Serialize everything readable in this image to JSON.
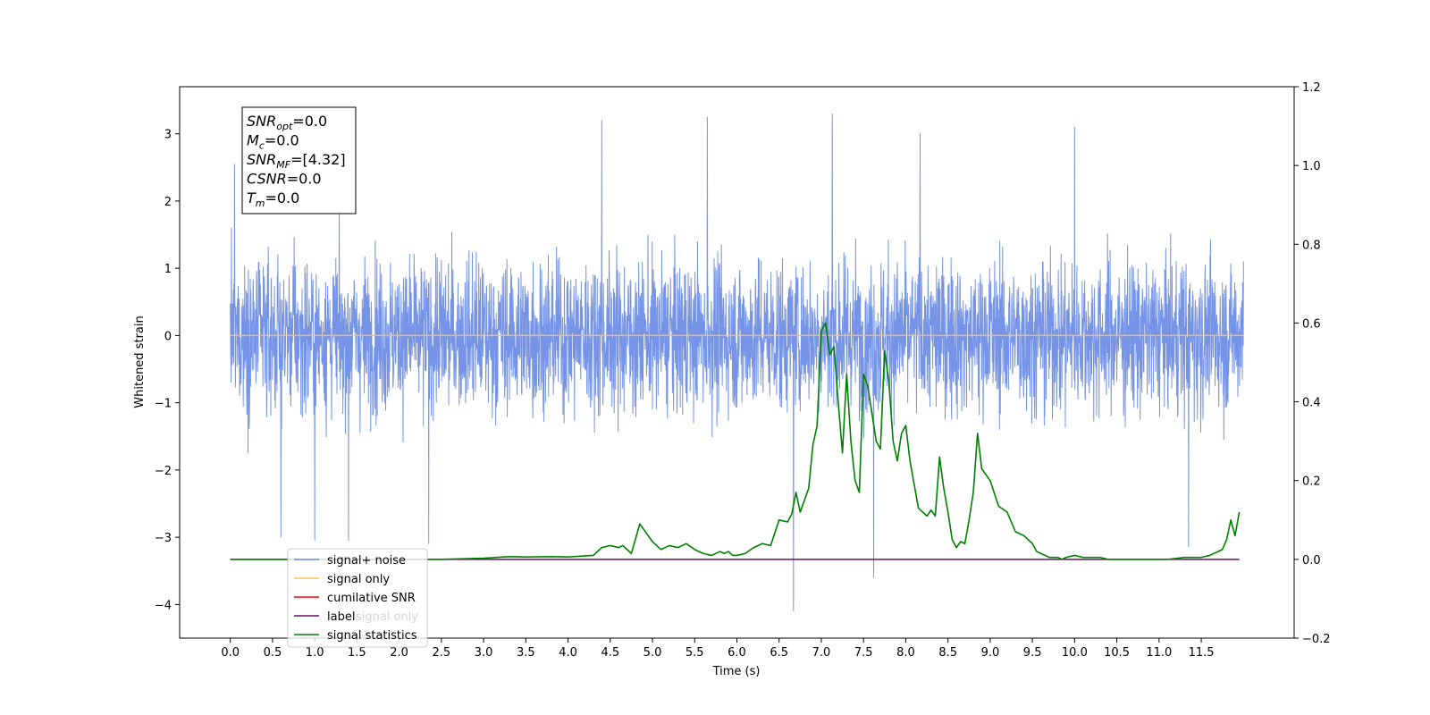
{
  "chart_data": {
    "type": "line",
    "xlabel": "Time (s)",
    "ylabel": "Whitened strain",
    "xlim": [
      -0.6,
      12.6
    ],
    "ylim": [
      -4.5,
      3.7
    ],
    "y2lim": [
      -0.2,
      1.2
    ],
    "xticks": [
      "0.0",
      "0.5",
      "1.0",
      "1.5",
      "2.0",
      "2.5",
      "3.0",
      "3.5",
      "4.0",
      "4.5",
      "5.0",
      "5.5",
      "6.0",
      "6.5",
      "7.0",
      "7.5",
      "8.0",
      "8.5",
      "9.0",
      "9.5",
      "10.0",
      "10.5",
      "11.0",
      "11.5"
    ],
    "yticks": [
      "3",
      "2",
      "1",
      "0",
      "−1",
      "−2",
      "−3",
      "−4"
    ],
    "y2ticks": [
      "1.2",
      "1.0",
      "0.8",
      "0.6",
      "0.4",
      "0.2",
      "0.0",
      "−0.2"
    ],
    "annotation": [
      {
        "base": "SNR",
        "sub": "opt",
        "value": "=0.0"
      },
      {
        "base": "M",
        "sub": "c",
        "value": "=0.0"
      },
      {
        "base": "SNR",
        "sub": "MF",
        "value": "=[4.32]"
      },
      {
        "base": "CSNR",
        "sub": "",
        "value": "=0.0"
      },
      {
        "base": "T",
        "sub": "m",
        "value": "=0.0"
      }
    ],
    "legend": {
      "position": "lower-left",
      "entries": [
        {
          "label": "signal+ noise",
          "color": "#6f8ee6"
        },
        {
          "label": "signal only",
          "color": "#ffbe5c"
        },
        {
          "label": "cumilative SNR",
          "color": "#ff0000"
        },
        {
          "label": "label",
          "color": "#6a0d6a"
        },
        {
          "label": "signal statistics",
          "color": "#008000"
        }
      ]
    },
    "hidden_legend_text": "signal only",
    "series": [
      {
        "name": "signal+ noise",
        "axis": "left",
        "color": "#6f8ee6",
        "style": "gaussian-noise",
        "x_range": [
          0.0,
          12.0
        ],
        "envelope": [
          -2.5,
          2.6
        ],
        "extremes": [
          {
            "x": 6.67,
            "y": -4.1
          },
          {
            "x": 7.13,
            "y": 3.3
          },
          {
            "x": 7.62,
            "y": -3.6
          },
          {
            "x": 4.4,
            "y": 3.2
          },
          {
            "x": 5.65,
            "y": 3.25
          },
          {
            "x": 8.17,
            "y": 3.0
          },
          {
            "x": 0.6,
            "y": -3.0
          },
          {
            "x": 1.0,
            "y": -3.05
          },
          {
            "x": 1.4,
            "y": -3.05
          },
          {
            "x": 2.35,
            "y": -3.1
          },
          {
            "x": 11.35,
            "y": -3.15
          },
          {
            "x": 10.0,
            "y": 3.1
          },
          {
            "x": 0.05,
            "y": 2.55
          },
          {
            "x": 12.0,
            "y": 1.1
          }
        ]
      },
      {
        "name": "signal only",
        "axis": "left",
        "color": "#ffbe5c",
        "x": [
          0.0,
          12.0
        ],
        "y": [
          0.0,
          0.0
        ]
      },
      {
        "name": "label",
        "axis": "right",
        "color": "#6a0d6a",
        "x": [
          0.0,
          11.95
        ],
        "y": [
          0.0,
          0.0
        ]
      },
      {
        "name": "signal statistics",
        "axis": "right",
        "color": "#008000",
        "x": [
          0.0,
          0.5,
          1.0,
          1.5,
          2.0,
          2.5,
          3.0,
          3.3,
          3.5,
          3.8,
          4.0,
          4.3,
          4.4,
          4.5,
          4.6,
          4.65,
          4.75,
          4.85,
          4.9,
          5.0,
          5.1,
          5.2,
          5.3,
          5.4,
          5.5,
          5.6,
          5.7,
          5.8,
          5.85,
          5.9,
          5.95,
          6.0,
          6.1,
          6.2,
          6.3,
          6.4,
          6.5,
          6.6,
          6.65,
          6.7,
          6.75,
          6.85,
          6.9,
          6.95,
          7.0,
          7.05,
          7.1,
          7.15,
          7.2,
          7.25,
          7.3,
          7.35,
          7.4,
          7.45,
          7.5,
          7.55,
          7.6,
          7.65,
          7.7,
          7.75,
          7.8,
          7.85,
          7.9,
          7.95,
          8.0,
          8.05,
          8.1,
          8.15,
          8.2,
          8.25,
          8.3,
          8.35,
          8.4,
          8.45,
          8.5,
          8.55,
          8.6,
          8.65,
          8.7,
          8.75,
          8.8,
          8.85,
          8.9,
          9.0,
          9.1,
          9.2,
          9.3,
          9.4,
          9.5,
          9.55,
          9.6,
          9.65,
          9.7,
          9.75,
          9.8,
          9.85,
          9.9,
          10.0,
          10.1,
          10.2,
          10.3,
          10.4,
          10.5,
          10.7,
          10.9,
          11.1,
          11.3,
          11.5,
          11.6,
          11.7,
          11.75,
          11.8,
          11.85,
          11.9,
          11.95
        ],
        "y": [
          0.0,
          0.0,
          0.0,
          0.0,
          0.0,
          0.0,
          0.003,
          0.007,
          0.006,
          0.007,
          0.006,
          0.01,
          0.03,
          0.035,
          0.03,
          0.035,
          0.015,
          0.09,
          0.075,
          0.045,
          0.025,
          0.035,
          0.03,
          0.04,
          0.025,
          0.015,
          0.01,
          0.02,
          0.015,
          0.02,
          0.01,
          0.01,
          0.015,
          0.03,
          0.04,
          0.035,
          0.1,
          0.095,
          0.115,
          0.17,
          0.12,
          0.18,
          0.29,
          0.34,
          0.58,
          0.6,
          0.52,
          0.54,
          0.4,
          0.27,
          0.47,
          0.3,
          0.2,
          0.17,
          0.47,
          0.44,
          0.37,
          0.3,
          0.28,
          0.53,
          0.45,
          0.3,
          0.25,
          0.32,
          0.34,
          0.25,
          0.19,
          0.13,
          0.12,
          0.11,
          0.125,
          0.11,
          0.26,
          0.18,
          0.12,
          0.05,
          0.03,
          0.045,
          0.04,
          0.1,
          0.17,
          0.32,
          0.23,
          0.2,
          0.135,
          0.12,
          0.07,
          0.06,
          0.04,
          0.02,
          0.015,
          0.01,
          0.005,
          0.005,
          0.005,
          0.0,
          0.005,
          0.01,
          0.005,
          0.005,
          0.005,
          0.0,
          0.0,
          0.0,
          0.0,
          0.0,
          0.005,
          0.005,
          0.01,
          0.02,
          0.025,
          0.05,
          0.1,
          0.06,
          0.12
        ]
      }
    ]
  }
}
